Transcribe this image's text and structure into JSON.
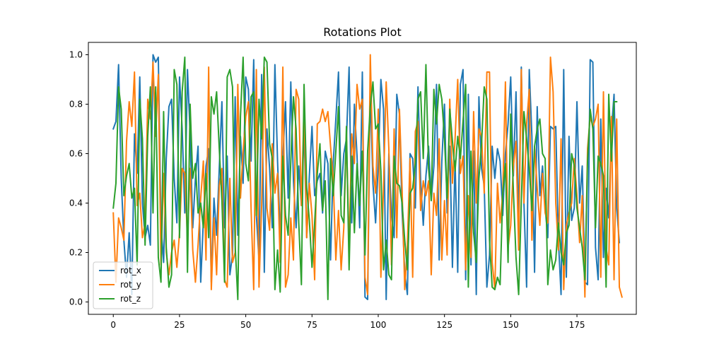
{
  "chart_data": {
    "type": "line",
    "title": "Rotations Plot",
    "xlabel": "",
    "ylabel": "",
    "xlim": [
      -9.4,
      197.4
    ],
    "ylim": [
      -0.05,
      1.05
    ],
    "xticks": [
      0,
      25,
      50,
      75,
      100,
      125,
      150,
      175
    ],
    "yticks": [
      0.0,
      0.2,
      0.4,
      0.6,
      0.8,
      1.0
    ],
    "ytick_labels": [
      "0.0",
      "0.2",
      "0.4",
      "0.6",
      "0.8",
      "1.0"
    ],
    "grid": false,
    "legend": "lower-left",
    "series": [
      {
        "name": "rot_x",
        "color": "#1f77b4",
        "values": [
          0.7,
          0.73,
          0.96,
          0.5,
          0.25,
          0.1,
          0.28,
          0.03,
          0.68,
          0.52,
          0.91,
          0.4,
          0.26,
          0.31,
          0.23,
          1.0,
          0.97,
          0.99,
          0.31,
          0.16,
          0.58,
          0.79,
          0.82,
          0.5,
          0.32,
          0.91,
          0.7,
          0.36,
          0.94,
          0.68,
          0.3,
          0.5,
          0.63,
          0.08,
          0.33,
          0.55,
          0.62,
          0.08,
          0.42,
          0.27,
          0.54,
          0.81,
          0.3,
          0.59,
          0.11,
          0.19,
          0.83,
          0.27,
          0.67,
          0.48,
          0.91,
          0.86,
          0.57,
          0.98,
          0.35,
          0.17,
          0.92,
          0.12,
          0.7,
          0.54,
          0.3,
          0.96,
          0.57,
          0.27,
          0.58,
          0.81,
          0.42,
          0.89,
          0.49,
          0.3,
          0.55,
          0.39,
          0.7,
          0.26,
          0.51,
          0.71,
          0.43,
          0.49,
          0.52,
          0.36,
          0.61,
          0.56,
          0.17,
          0.56,
          0.74,
          0.93,
          0.43,
          0.6,
          0.66,
          0.95,
          0.32,
          0.8,
          0.59,
          0.3,
          0.93,
          0.02,
          0.01,
          0.87,
          0.48,
          0.32,
          0.56,
          0.9,
          0.78,
          0.01,
          0.6,
          0.35,
          0.26,
          0.84,
          0.76,
          0.37,
          0.12,
          0.03,
          0.6,
          0.58,
          0.38,
          0.87,
          0.49,
          0.31,
          0.51,
          0.63,
          0.41,
          0.55,
          0.88,
          0.17,
          0.57,
          0.8,
          0.36,
          0.63,
          0.14,
          0.57,
          0.12,
          0.88,
          0.94,
          0.09,
          0.84,
          0.15,
          0.61,
          0.03,
          0.83,
          0.54,
          0.47,
          0.06,
          0.19,
          0.63,
          0.5,
          0.62,
          0.57,
          0.35,
          0.6,
          0.72,
          0.91,
          0.51,
          0.85,
          0.31,
          0.95,
          0.4,
          0.06,
          0.94,
          0.67,
          0.12,
          0.79,
          0.43,
          0.55,
          0.38,
          0.26,
          0.71,
          0.7,
          0.71,
          0.25,
          0.03,
          0.94,
          0.1,
          0.67,
          0.33,
          0.38,
          0.81,
          0.4,
          0.55,
          0.08,
          0.07,
          0.98,
          0.97,
          0.22,
          0.09,
          0.74,
          0.18,
          0.46,
          0.34,
          0.69,
          0.84,
          0.38,
          0.24
        ]
      },
      {
        "name": "rot_y",
        "color": "#ff7f0e",
        "values": [
          0.36,
          0.08,
          0.34,
          0.3,
          0.25,
          0.65,
          0.81,
          0.71,
          0.93,
          0.39,
          0.44,
          0.26,
          0.32,
          0.82,
          0.74,
          0.97,
          0.67,
          0.92,
          0.15,
          0.52,
          0.2,
          0.11,
          0.2,
          0.25,
          0.14,
          0.28,
          0.54,
          0.52,
          0.25,
          0.54,
          0.21,
          0.08,
          0.23,
          0.42,
          0.57,
          0.17,
          0.95,
          0.05,
          0.34,
          0.11,
          0.47,
          0.54,
          0.09,
          0.06,
          0.5,
          0.16,
          0.2,
          0.88,
          0.42,
          0.61,
          0.75,
          0.81,
          0.38,
          0.05,
          0.94,
          0.06,
          0.39,
          0.95,
          0.38,
          0.29,
          0.64,
          0.44,
          0.52,
          0.16,
          0.95,
          0.06,
          0.11,
          0.34,
          0.17,
          0.86,
          0.82,
          0.39,
          0.79,
          0.26,
          0.48,
          0.35,
          0.09,
          0.72,
          0.73,
          0.78,
          0.73,
          0.77,
          0.63,
          0.5,
          0.17,
          0.37,
          0.13,
          0.3,
          0.67,
          0.22,
          0.68,
          0.56,
          0.88,
          0.78,
          0.82,
          0.1,
          0.03,
          1.0,
          0.55,
          0.44,
          0.78,
          0.1,
          0.47,
          0.89,
          0.62,
          0.15,
          0.7,
          0.26,
          0.78,
          0.46,
          0.05,
          0.23,
          0.58,
          0.1,
          0.69,
          0.73,
          0.37,
          0.49,
          0.43,
          0.49,
          0.11,
          0.44,
          0.35,
          0.66,
          0.17,
          0.41,
          0.19,
          0.82,
          0.48,
          0.66,
          0.9,
          0.52,
          0.59,
          0.13,
          0.43,
          0.18,
          0.77,
          0.4,
          0.7,
          0.67,
          0.44,
          0.93,
          0.93,
          0.16,
          0.05,
          0.48,
          0.32,
          0.44,
          0.89,
          0.22,
          0.31,
          0.55,
          0.65,
          0.21,
          0.94,
          0.4,
          0.72,
          0.86,
          0.25,
          0.63,
          0.46,
          0.31,
          0.52,
          0.36,
          0.32,
          0.99,
          0.85,
          0.4,
          0.21,
          0.66,
          0.05,
          0.31,
          0.36,
          0.4,
          0.58,
          0.43,
          0.24,
          0.43,
          0.02,
          0.62,
          0.75,
          0.71,
          0.74,
          0.8,
          0.1,
          0.85,
          0.22,
          0.15,
          0.75,
          0.09,
          0.74,
          0.06,
          0.02
        ]
      },
      {
        "name": "rot_z",
        "color": "#2ca02c",
        "values": [
          0.38,
          0.48,
          0.87,
          0.78,
          0.43,
          0.51,
          0.56,
          0.42,
          0.46,
          0.15,
          0.82,
          0.66,
          0.23,
          0.67,
          0.87,
          0.36,
          0.87,
          0.18,
          0.08,
          0.77,
          0.22,
          0.06,
          0.11,
          0.94,
          0.88,
          0.26,
          0.85,
          0.99,
          0.12,
          0.8,
          0.5,
          0.56,
          0.36,
          0.4,
          0.3,
          0.52,
          0.26,
          0.83,
          0.76,
          0.85,
          0.62,
          0.41,
          0.08,
          0.91,
          0.94,
          0.87,
          0.23,
          0.01,
          0.75,
          0.99,
          0.56,
          0.49,
          0.83,
          0.85,
          0.35,
          0.82,
          0.66,
          0.99,
          0.97,
          0.64,
          0.58,
          0.05,
          0.21,
          0.04,
          0.59,
          0.35,
          0.27,
          0.57,
          0.83,
          0.7,
          0.32,
          0.07,
          0.88,
          0.46,
          0.33,
          0.14,
          0.32,
          0.52,
          0.64,
          0.37,
          0.49,
          0.01,
          0.58,
          0.43,
          0.61,
          0.79,
          0.35,
          0.32,
          0.71,
          0.13,
          0.59,
          0.28,
          0.56,
          0.39,
          0.61,
          0.19,
          0.61,
          0.79,
          0.89,
          0.7,
          0.72,
          0.53,
          0.13,
          0.25,
          0.11,
          0.09,
          0.59,
          0.48,
          0.47,
          0.4,
          0.25,
          0.13,
          0.44,
          0.46,
          0.56,
          0.82,
          0.85,
          0.58,
          0.96,
          0.54,
          0.41,
          0.86,
          0.72,
          0.88,
          0.82,
          0.66,
          0.42,
          0.78,
          0.65,
          0.53,
          0.67,
          0.58,
          0.73,
          0.88,
          0.06,
          0.61,
          0.28,
          0.16,
          0.5,
          0.64,
          0.87,
          0.82,
          0.25,
          0.06,
          0.05,
          0.1,
          0.07,
          0.44,
          0.56,
          0.16,
          0.76,
          0.45,
          0.18,
          0.03,
          0.4,
          0.77,
          0.66,
          0.54,
          0.37,
          0.63,
          0.7,
          0.74,
          0.6,
          0.58,
          0.07,
          0.21,
          0.13,
          0.17,
          0.32,
          0.2,
          0.15,
          0.28,
          0.31,
          0.6,
          0.55,
          0.38,
          0.3,
          0.22,
          0.09,
          0.57,
          0.78,
          0.7,
          0.3,
          0.59,
          0.56,
          0.51,
          0.06,
          0.84,
          0.57,
          0.81,
          0.81
        ]
      }
    ]
  }
}
